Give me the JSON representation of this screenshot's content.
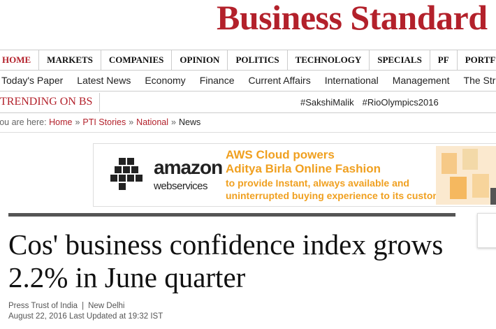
{
  "header": {
    "logo": "Business Standard"
  },
  "nav": {
    "primary": [
      "HOME",
      "MARKETS",
      "COMPANIES",
      "OPINION",
      "POLITICS",
      "TECHNOLOGY",
      "SPECIALS",
      "PF",
      "PORTFOLIO"
    ],
    "secondary": [
      "Today's Paper",
      "Latest News",
      "Economy",
      "Finance",
      "Current Affairs",
      "International",
      "Management",
      "The Strategist"
    ]
  },
  "trending": {
    "label": "TRENDING ON BS",
    "tags": [
      "#SakshiMalik",
      "#RioOlympics2016"
    ]
  },
  "breadcrumb": {
    "prefix": "You are here:",
    "separator": "»",
    "items": [
      "Home",
      "PTI Stories",
      "National",
      "News"
    ]
  },
  "ad": {
    "brand": "amazon",
    "sub": "webservices",
    "headline": [
      "AWS Cloud powers",
      "Aditya Birla Online Fashion"
    ],
    "body": [
      "to provide Instant, always available and",
      "uninterrupted buying experience to its customers."
    ]
  },
  "article": {
    "title": "Cos' business confidence index grows 2.2% in June quarter",
    "source": "Press Trust of India",
    "separator": "|",
    "location": "New Delhi",
    "date": "August 22, 2016 Last Updated at 19:32 IST"
  }
}
